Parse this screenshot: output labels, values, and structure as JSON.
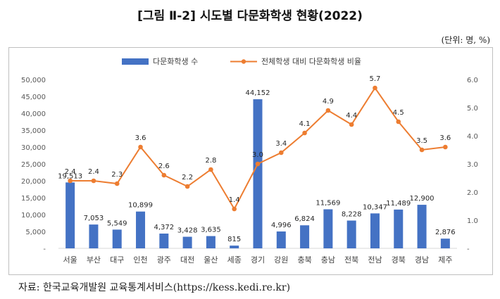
{
  "title": "[그림 Ⅱ-2] 시도별 다문화학생 현황(2022)",
  "unit_note": "(단위: 명, %)",
  "source": "자료: 한국교육개발원 교육통계서비스(https://kess.kedi.re.kr)",
  "colors": {
    "bar": "#4472C4",
    "line": "#ED7D31",
    "axis_text": "#595959",
    "grid": "#d9d9d9"
  },
  "chart_data": {
    "type": "bar",
    "categories": [
      "서울",
      "부산",
      "대구",
      "인천",
      "광주",
      "대전",
      "울산",
      "세종",
      "경기",
      "강원",
      "충북",
      "충남",
      "전북",
      "전남",
      "경북",
      "경남",
      "제주"
    ],
    "series": [
      {
        "name": "다문화학생 수",
        "axis": "left",
        "type": "bar",
        "values": [
          19513,
          7053,
          5549,
          10899,
          4372,
          3428,
          3635,
          815,
          44152,
          4996,
          6824,
          11569,
          8228,
          10347,
          11489,
          12900,
          2876
        ],
        "labels": [
          "19,513",
          "7,053",
          "5,549",
          "10,899",
          "4,372",
          "3,428",
          "3,635",
          "815",
          "44,152",
          "4,996",
          "6,824",
          "11,569",
          "8,228",
          "10,347",
          "11,489",
          "12,900",
          "2,876"
        ]
      },
      {
        "name": "전체학생 대비 다문화학생 비율",
        "axis": "right",
        "type": "line",
        "values": [
          2.4,
          2.4,
          2.3,
          3.6,
          2.6,
          2.2,
          2.8,
          1.4,
          3.0,
          3.4,
          4.1,
          4.9,
          4.4,
          5.7,
          4.5,
          3.5,
          3.6
        ],
        "labels": [
          "2.4",
          "2.4",
          "2.3",
          "3.6",
          "2.6",
          "2.2",
          "2.8",
          "1.4",
          "3.0",
          "3.4",
          "4.1",
          "4.9",
          "4.4",
          "5.7",
          "4.5",
          "3.5",
          "3.6"
        ]
      }
    ],
    "y_left": {
      "lim": [
        0,
        50000
      ],
      "ticks": [
        "-",
        "5,000",
        "10,000",
        "15,000",
        "20,000",
        "25,000",
        "30,000",
        "35,000",
        "40,000",
        "45,000",
        "50,000"
      ]
    },
    "y_right": {
      "lim": [
        0,
        6.0
      ],
      "ticks": [
        "-",
        "1.0",
        "2.0",
        "3.0",
        "4.0",
        "5.0",
        "6.0"
      ]
    },
    "legend_position": "top-center",
    "grid": false
  }
}
